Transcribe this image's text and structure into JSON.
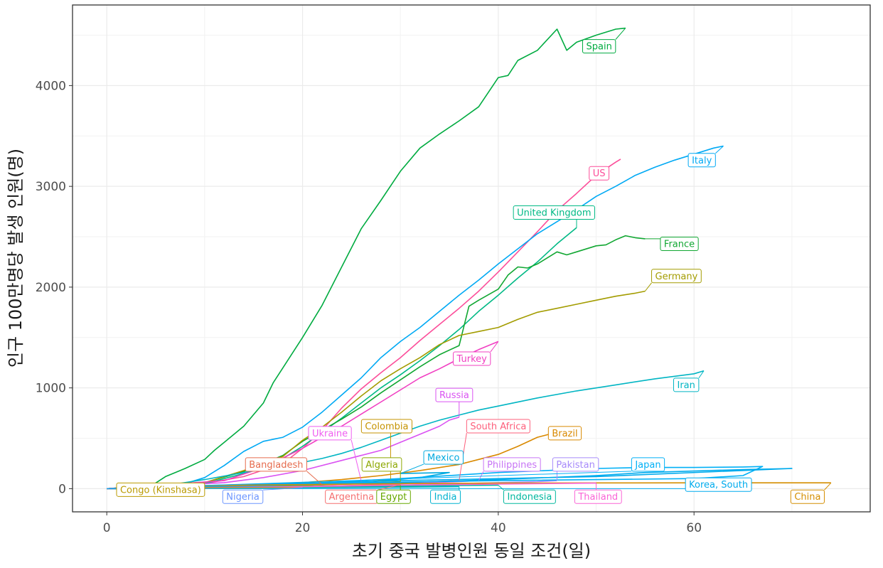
{
  "chart_data": {
    "type": "line",
    "xlabel": "초기 중국 발병인원 동일 조건(일)",
    "ylabel": "인구 100만명당 발생 인원(명)",
    "xlim": [
      -3.5,
      78
    ],
    "ylim": [
      -230,
      4800
    ],
    "x_ticks": [
      "0",
      "20",
      "40",
      "60"
    ],
    "x_tick_values": [
      0,
      20,
      40,
      60
    ],
    "y_ticks": [
      "0",
      "1000",
      "2000",
      "3000",
      "4000"
    ],
    "y_tick_values": [
      0,
      1000,
      2000,
      3000,
      4000
    ],
    "grid": true,
    "legend": "none (direct labels)",
    "series": [
      {
        "name": "Spain",
        "color": "#00ab40",
        "x": [
          0,
          4.5,
          6,
          8,
          10,
          11,
          12,
          14,
          16,
          17,
          18,
          20,
          22,
          24,
          26,
          28,
          30,
          32,
          34,
          36,
          38,
          40,
          41,
          42,
          44,
          46,
          47,
          48,
          50,
          52,
          53
        ],
        "y": [
          0,
          25,
          120,
          200,
          290,
          380,
          460,
          620,
          850,
          1050,
          1200,
          1500,
          1820,
          2200,
          2580,
          2860,
          3150,
          3380,
          3520,
          3650,
          3790,
          4080,
          4100,
          4250,
          4350,
          4560,
          4350,
          4430,
          4500,
          4560,
          4570
        ],
        "label_xy": [
          50.3,
          4390
        ]
      },
      {
        "name": "US",
        "color": "#fc4e9a",
        "x": [
          0,
          6,
          10,
          14,
          18,
          20,
          22,
          24,
          26,
          28,
          30,
          32,
          34,
          36,
          38,
          40,
          42,
          44,
          46,
          48,
          50,
          52,
          52.5
        ],
        "y": [
          0,
          15,
          50,
          120,
          250,
          400,
          580,
          800,
          990,
          1150,
          1300,
          1470,
          1630,
          1790,
          1960,
          2150,
          2350,
          2550,
          2760,
          2930,
          3110,
          3240,
          3270
        ],
        "label_xy": [
          50.3,
          3130
        ]
      },
      {
        "name": "Italy",
        "color": "#00a9f4",
        "x": [
          0,
          8,
          10,
          12,
          14,
          16,
          18,
          20,
          22,
          24,
          26,
          28,
          30,
          32,
          34,
          36,
          38,
          40,
          42,
          44,
          46,
          48,
          50,
          52,
          54,
          56,
          58,
          60,
          62,
          63
        ],
        "y": [
          0,
          50,
          110,
          230,
          370,
          470,
          510,
          610,
          760,
          930,
          1100,
          1300,
          1460,
          1600,
          1760,
          1920,
          2070,
          2230,
          2380,
          2530,
          2650,
          2770,
          2900,
          3000,
          3110,
          3190,
          3260,
          3320,
          3380,
          3400
        ],
        "label_xy": [
          60.8,
          3260
        ]
      },
      {
        "name": "United Kingdom",
        "color": "#00b985",
        "x": [
          0,
          10,
          14,
          18,
          20,
          22,
          24,
          26,
          28,
          30,
          32,
          34,
          36,
          38,
          40,
          42,
          44,
          46,
          48
        ],
        "y": [
          0,
          50,
          150,
          300,
          420,
          560,
          700,
          850,
          1000,
          1130,
          1270,
          1420,
          1580,
          1760,
          1920,
          2090,
          2250,
          2430,
          2590
        ],
        "label_xy": [
          45.7,
          2740
        ]
      },
      {
        "name": "France",
        "color": "#11a732",
        "x": [
          0,
          10,
          14,
          18,
          20,
          22,
          24,
          26,
          28,
          30,
          32,
          34,
          36,
          37,
          38,
          40,
          41,
          42,
          43,
          44,
          46,
          47,
          48,
          50,
          51,
          52,
          53,
          54,
          55
        ],
        "y": [
          0,
          60,
          170,
          330,
          470,
          580,
          690,
          810,
          950,
          1080,
          1210,
          1330,
          1420,
          1810,
          1870,
          1980,
          2120,
          2200,
          2190,
          2230,
          2350,
          2320,
          2350,
          2410,
          2420,
          2470,
          2510,
          2490,
          2480
        ],
        "label_xy": [
          58.5,
          2430
        ]
      },
      {
        "name": "Germany",
        "color": "#a39c00",
        "x": [
          0,
          10,
          14,
          18,
          20,
          22,
          24,
          26,
          28,
          30,
          32,
          34,
          36,
          38,
          40,
          42,
          44,
          46,
          48,
          50,
          52,
          54,
          55
        ],
        "y": [
          0,
          60,
          180,
          320,
          480,
          610,
          760,
          920,
          1070,
          1190,
          1300,
          1430,
          1520,
          1560,
          1600,
          1680,
          1750,
          1790,
          1830,
          1870,
          1910,
          1940,
          1960
        ],
        "label_xy": [
          58.2,
          2110
        ]
      },
      {
        "name": "Turkey",
        "color": "#f13fc2",
        "x": [
          0,
          12,
          16,
          20,
          24,
          28,
          30,
          32,
          34,
          36,
          38,
          40
        ],
        "y": [
          0,
          80,
          210,
          400,
          620,
          860,
          980,
          1100,
          1190,
          1290,
          1380,
          1460
        ],
        "label_xy": [
          37.3,
          1290
        ]
      },
      {
        "name": "Iran",
        "color": "#00b5c3",
        "x": [
          0,
          6,
          10,
          14,
          18,
          20,
          22,
          24,
          26,
          28,
          30,
          32,
          34,
          36,
          38,
          40,
          44,
          48,
          52,
          56,
          60,
          61
        ],
        "y": [
          0,
          30,
          90,
          160,
          230,
          260,
          300,
          350,
          410,
          480,
          550,
          620,
          680,
          730,
          780,
          820,
          900,
          970,
          1030,
          1090,
          1140,
          1170
        ],
        "label_xy": [
          59.2,
          1030
        ]
      },
      {
        "name": "Russia",
        "color": "#da52f2",
        "x": [
          0,
          12,
          16,
          20,
          24,
          28,
          32,
          34,
          35,
          36
        ],
        "y": [
          0,
          60,
          110,
          180,
          280,
          380,
          540,
          620,
          680,
          710
        ],
        "label_xy": [
          35.5,
          930
        ]
      },
      {
        "name": "Brazil",
        "color": "#d98900",
        "x": [
          0,
          12,
          16,
          20,
          24,
          28,
          32,
          36,
          38,
          40,
          42,
          44,
          46
        ],
        "y": [
          0,
          20,
          40,
          60,
          90,
          130,
          180,
          240,
          290,
          340,
          420,
          510,
          560
        ],
        "label_xy": [
          46.8,
          550
        ]
      },
      {
        "name": "Colombia",
        "color": "#c59300",
        "x": [
          0,
          12,
          20,
          26,
          29
        ],
        "y": [
          0,
          15,
          30,
          60,
          90
        ],
        "label_xy": [
          28.6,
          620
        ]
      },
      {
        "name": "South Africa",
        "color": "#fd5f7b",
        "x": [
          0,
          12,
          20,
          26,
          32,
          36
        ],
        "y": [
          0,
          15,
          30,
          50,
          65,
          80
        ],
        "label_xy": [
          40.0,
          620
        ]
      },
      {
        "name": "Mexico",
        "color": "#00aadf",
        "x": [
          0,
          12,
          20,
          26,
          32,
          35,
          30
        ],
        "y": [
          0,
          15,
          30,
          60,
          110,
          160,
          150
        ],
        "label_xy": [
          34.4,
          310
        ]
      },
      {
        "name": "Ukraine",
        "color": "#ef5df0",
        "x": [
          0,
          12,
          16,
          20,
          24,
          26
        ],
        "y": [
          0,
          15,
          25,
          40,
          60,
          75
        ],
        "label_xy": [
          22.8,
          550
        ]
      },
      {
        "name": "Bangladesh",
        "color": "#e66c4e",
        "x": [
          0,
          12,
          16,
          20,
          22
        ],
        "y": [
          0,
          10,
          20,
          30,
          40
        ],
        "label_xy": [
          17.3,
          240
        ]
      },
      {
        "name": "Algeria",
        "color": "#8ca700",
        "x": [
          0,
          12,
          20,
          26,
          30
        ],
        "y": [
          0,
          15,
          30,
          55,
          70
        ],
        "label_xy": [
          28.1,
          240
        ]
      },
      {
        "name": "Philippines",
        "color": "#c774f5",
        "x": [
          0,
          12,
          20,
          28,
          36,
          38
        ],
        "y": [
          0,
          10,
          20,
          40,
          70,
          80
        ],
        "label_xy": [
          41.4,
          240
        ]
      },
      {
        "name": "Pakistan",
        "color": "#a78afa",
        "x": [
          0,
          12,
          20,
          28,
          36,
          44,
          46
        ],
        "y": [
          0,
          10,
          20,
          30,
          50,
          70,
          80
        ],
        "label_xy": [
          47.9,
          240
        ]
      },
      {
        "name": "Japan",
        "color": "#00b0f6",
        "x": [
          0,
          10,
          20,
          30,
          40,
          50,
          55,
          60,
          65,
          67,
          65,
          60,
          40,
          20,
          10,
          0
        ],
        "y": [
          0,
          15,
          50,
          100,
          160,
          200,
          210,
          210,
          215,
          220,
          130,
          100,
          80,
          50,
          20,
          0
        ],
        "label_xy": [
          55.3,
          240
        ]
      },
      {
        "name": "Korea, South",
        "color": "#00abed",
        "x": [
          0,
          10,
          30,
          40,
          50,
          55,
          65,
          70,
          50,
          30,
          10,
          0
        ],
        "y": [
          0,
          15,
          60,
          90,
          130,
          160,
          190,
          200,
          120,
          80,
          30,
          0
        ],
        "label_xy": [
          62.5,
          40
        ]
      },
      {
        "name": "China",
        "color": "#d48e00",
        "x": [
          0,
          10,
          20,
          30,
          40,
          50,
          60,
          70,
          74
        ],
        "y": [
          0,
          30,
          40,
          50,
          55,
          57,
          58,
          58,
          58
        ],
        "label_xy": [
          71.6,
          -80
        ]
      },
      {
        "name": "Congo (Kinshasa)",
        "color": "#ba9a00",
        "x": [
          0,
          10,
          20
        ],
        "y": [
          0,
          5,
          10
        ],
        "label_xy": [
          5.5,
          -10
        ]
      },
      {
        "name": "Nigeria",
        "color": "#6b95ff",
        "x": [
          0,
          10,
          20
        ],
        "y": [
          0,
          5,
          10
        ],
        "label_xy": [
          13.9,
          -80
        ]
      },
      {
        "name": "Argentina",
        "color": "#f56e6e",
        "x": [
          0,
          10,
          20,
          30
        ],
        "y": [
          0,
          10,
          20,
          40
        ],
        "label_xy": [
          25.0,
          -80
        ]
      },
      {
        "name": "Egypt",
        "color": "#67a800",
        "x": [
          0,
          10,
          20,
          30
        ],
        "y": [
          0,
          10,
          20,
          35
        ],
        "label_xy": [
          29.3,
          -80
        ]
      },
      {
        "name": "India",
        "color": "#00b2cf",
        "x": [
          0,
          10,
          20,
          30,
          36
        ],
        "y": [
          0,
          5,
          10,
          15,
          20
        ],
        "label_xy": [
          34.6,
          -80
        ]
      },
      {
        "name": "Indonesia",
        "color": "#00b79e",
        "x": [
          0,
          10,
          20,
          30,
          40
        ],
        "y": [
          0,
          5,
          15,
          25,
          35
        ],
        "label_xy": [
          43.2,
          -80
        ]
      },
      {
        "name": "Thailand",
        "color": "#fa63d6",
        "x": [
          0,
          10,
          20,
          30,
          40,
          50
        ],
        "y": [
          0,
          10,
          20,
          35,
          45,
          55
        ],
        "label_xy": [
          50.2,
          -80
        ]
      }
    ]
  }
}
